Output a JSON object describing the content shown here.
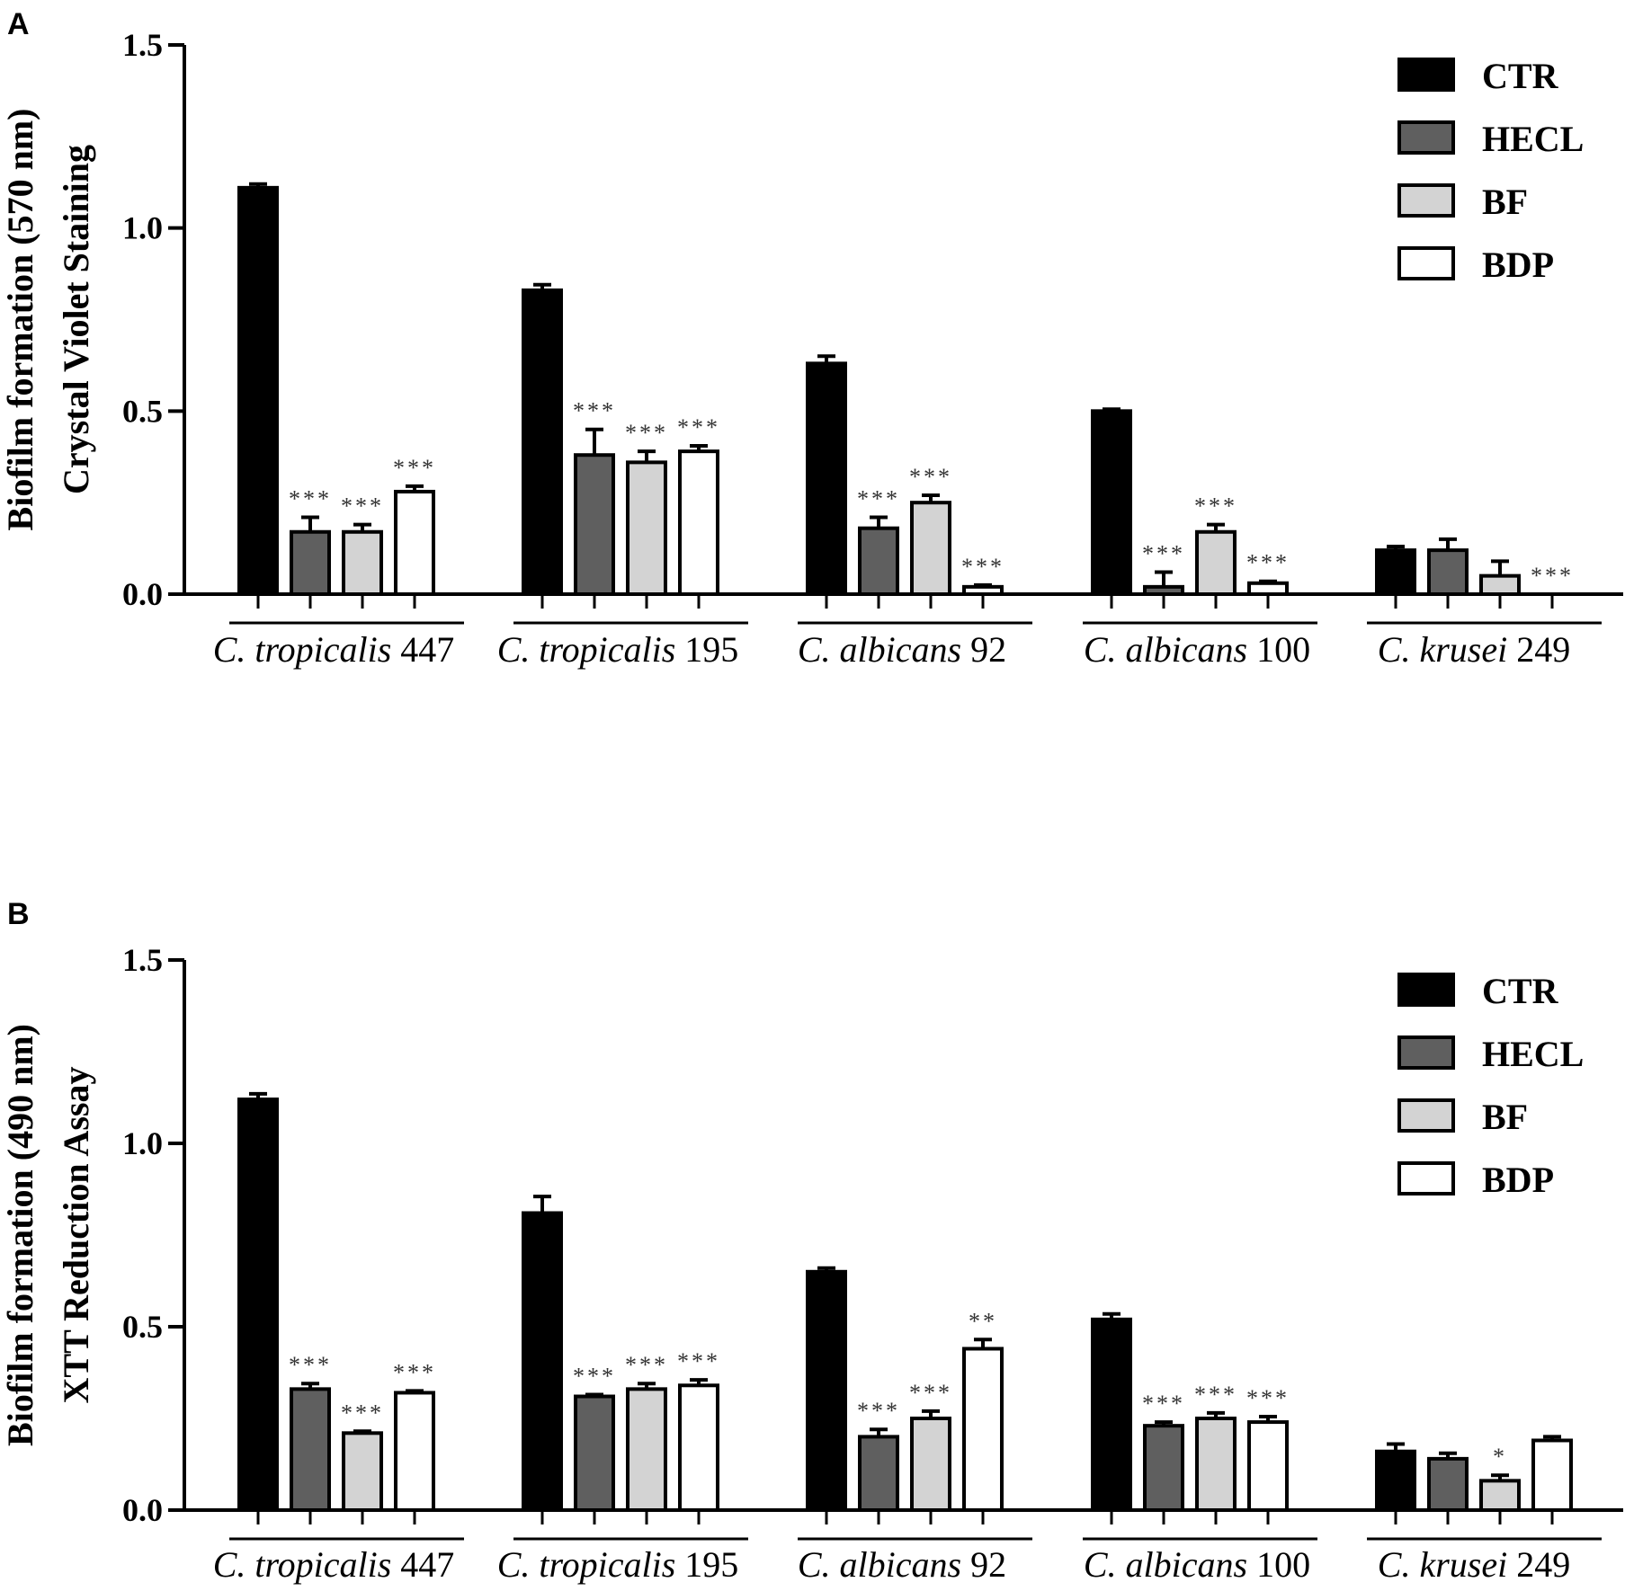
{
  "chart_data": [
    {
      "type": "bar",
      "panel": "A",
      "ylabel_line1": "Biofilm formation (570 nm)",
      "ylabel_line2": "Crystal Violet Staining",
      "ylim": [
        0,
        1.5
      ],
      "yticks": [
        "0.0",
        "0.5",
        "1.0",
        "1.5"
      ],
      "categories": [
        {
          "species": "C. tropicalis",
          "strain": "447"
        },
        {
          "species": "C. tropicalis",
          "strain": "195"
        },
        {
          "species": "C. albicans",
          "strain": "92"
        },
        {
          "species": "C. albicans",
          "strain": "100"
        },
        {
          "species": "C. krusei",
          "strain": "249"
        }
      ],
      "series": [
        {
          "name": "CTR",
          "color": "#000000",
          "values": [
            1.11,
            0.83,
            0.63,
            0.5,
            0.12
          ],
          "errors": [
            0.01,
            0.015,
            0.02,
            0.005,
            0.01
          ],
          "sig": [
            "",
            "",
            "",
            "",
            ""
          ]
        },
        {
          "name": "HECL",
          "color": "#5f5f5f",
          "values": [
            0.17,
            0.38,
            0.18,
            0.02,
            0.12
          ],
          "errors": [
            0.04,
            0.07,
            0.03,
            0.04,
            0.03
          ],
          "sig": [
            "***",
            "***",
            "***",
            "***",
            ""
          ]
        },
        {
          "name": "BF",
          "color": "#d3d3d3",
          "values": [
            0.17,
            0.36,
            0.25,
            0.17,
            0.05
          ],
          "errors": [
            0.02,
            0.03,
            0.02,
            0.02,
            0.04
          ],
          "sig": [
            "***",
            "***",
            "***",
            "***",
            ""
          ]
        },
        {
          "name": "BDP",
          "color": "#ffffff",
          "values": [
            0.28,
            0.39,
            0.02,
            0.03,
            0.0
          ],
          "errors": [
            0.015,
            0.015,
            0.005,
            0.005,
            0.0
          ],
          "sig": [
            "***",
            "***",
            "***",
            "***",
            "***"
          ]
        }
      ]
    },
    {
      "type": "bar",
      "panel": "B",
      "ylabel_line1": "Biofilm formation (490 nm)",
      "ylabel_line2": "XTT Reduction Assay",
      "ylim": [
        0,
        1.5
      ],
      "yticks": [
        "0.0",
        "0.5",
        "1.0",
        "1.5"
      ],
      "categories": [
        {
          "species": "C. tropicalis",
          "strain": "447"
        },
        {
          "species": "C. tropicalis",
          "strain": "195"
        },
        {
          "species": "C. albicans",
          "strain": "92"
        },
        {
          "species": "C. albicans",
          "strain": "100"
        },
        {
          "species": "C. krusei",
          "strain": "249"
        }
      ],
      "series": [
        {
          "name": "CTR",
          "color": "#000000",
          "values": [
            1.12,
            0.81,
            0.65,
            0.52,
            0.16
          ],
          "errors": [
            0.015,
            0.045,
            0.01,
            0.015,
            0.02
          ],
          "sig": [
            "",
            "",
            "",
            "",
            ""
          ]
        },
        {
          "name": "HECL",
          "color": "#5f5f5f",
          "values": [
            0.33,
            0.31,
            0.2,
            0.23,
            0.14
          ],
          "errors": [
            0.015,
            0.005,
            0.02,
            0.01,
            0.015
          ],
          "sig": [
            "***",
            "***",
            "***",
            "***",
            ""
          ]
        },
        {
          "name": "BF",
          "color": "#d3d3d3",
          "values": [
            0.21,
            0.33,
            0.25,
            0.25,
            0.08
          ],
          "errors": [
            0.005,
            0.015,
            0.02,
            0.015,
            0.015
          ],
          "sig": [
            "***",
            "***",
            "***",
            "***",
            "*"
          ]
        },
        {
          "name": "BDP",
          "color": "#ffffff",
          "values": [
            0.32,
            0.34,
            0.44,
            0.24,
            0.19
          ],
          "errors": [
            0.005,
            0.015,
            0.025,
            0.015,
            0.01
          ],
          "sig": [
            "***",
            "***",
            "**",
            "***",
            ""
          ]
        }
      ]
    }
  ]
}
